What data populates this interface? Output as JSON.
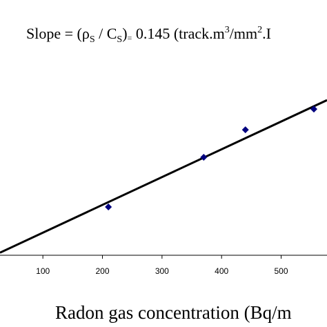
{
  "chart_data": {
    "type": "scatter",
    "title_parts": [
      "Slope = (ρ",
      "S",
      " / C",
      "S",
      ")",
      "=",
      " 0.145 (track.m",
      "3",
      "/mm",
      "2",
      ".I"
    ],
    "x_label": "Radon gas concentration (Bq/m",
    "x": [
      210,
      370,
      440,
      555
    ],
    "values": [
      25.3,
      51.3,
      65.7,
      76.5
    ],
    "color": "#00007f",
    "fit": {
      "x": [
        28,
        577
      ],
      "values": [
        1.4,
        81.2
      ],
      "color": "#000000"
    },
    "xlim": [
      28,
      577
    ],
    "ylim": [
      -37.5,
      133.6
    ],
    "xticks": [
      100,
      200,
      300,
      400,
      500
    ]
  }
}
